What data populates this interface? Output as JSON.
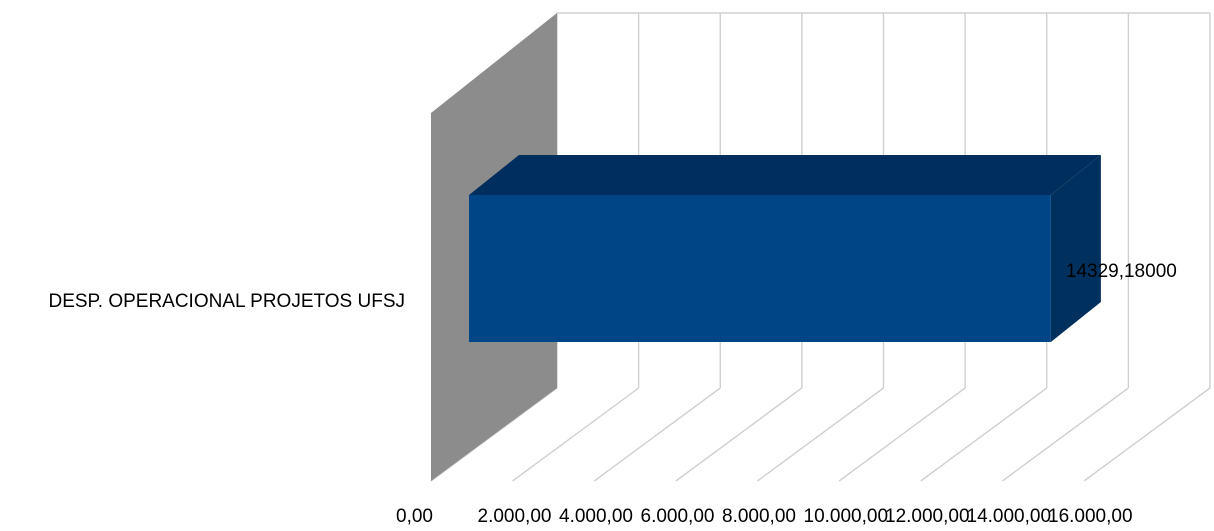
{
  "chart_data": {
    "type": "bar",
    "orientation": "horizontal",
    "style": "3d",
    "categories": [
      "DESP. OPERACIONAL PROJETOS UFSJ"
    ],
    "values": [
      14329.18
    ],
    "data_labels": [
      "14329,18000"
    ],
    "xlim": [
      0,
      16000
    ],
    "ticks": [
      0,
      2000,
      4000,
      6000,
      8000,
      10000,
      12000,
      14000,
      16000
    ],
    "tick_labels": [
      "0,00",
      "2.000,00",
      "4.000,00",
      "6.000,00",
      "8.000,00",
      "10.000,00",
      "12.000,00",
      "14.000,00",
      "16.000,00"
    ],
    "grid": true,
    "legend": "none",
    "colors": {
      "bar_front": "#004586",
      "bar_top": "#002e5e",
      "bar_side": "#00305e",
      "side_wall": "#8c8c8c",
      "gridline": "#d0d0d0"
    }
  }
}
